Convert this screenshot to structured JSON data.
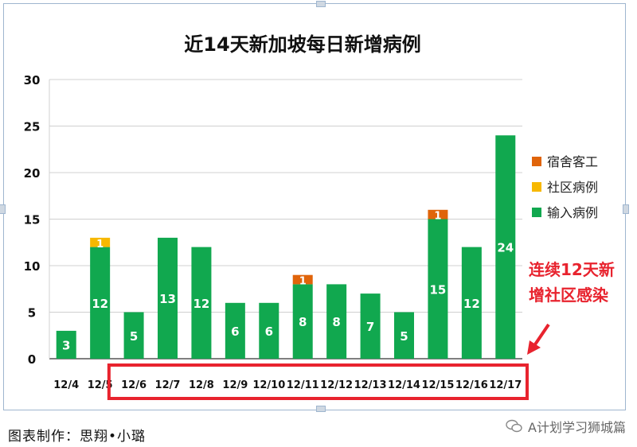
{
  "chart_data": {
    "type": "bar",
    "title": "近14天新加坡每日新增病例",
    "categories": [
      "12/4",
      "12/5",
      "12/6",
      "12/7",
      "12/8",
      "12/9",
      "12/10",
      "12/11",
      "12/12",
      "12/13",
      "12/14",
      "12/15",
      "12/16",
      "12/17"
    ],
    "series": [
      {
        "name": "输入病例",
        "color": "#11a84f",
        "values": [
          3,
          12,
          5,
          13,
          12,
          6,
          6,
          8,
          8,
          7,
          5,
          15,
          12,
          24
        ]
      },
      {
        "name": "社区病例",
        "color": "#f7b800",
        "values": [
          0,
          1,
          0,
          0,
          0,
          0,
          0,
          0,
          0,
          0,
          0,
          0,
          0,
          0
        ]
      },
      {
        "name": "宿舍客工",
        "color": "#e0640a",
        "values": [
          0,
          0,
          0,
          0,
          0,
          0,
          0,
          1,
          0,
          0,
          0,
          1,
          0,
          0
        ]
      }
    ],
    "legend_order": [
      "宿舍客工",
      "社区病例",
      "输入病例"
    ],
    "ylim": [
      0,
      30
    ],
    "yticks": [
      0,
      5,
      10,
      15,
      20,
      25,
      30
    ],
    "legend_position": "right",
    "annotation": {
      "lines": [
        "连续12天新",
        "增社区感染"
      ],
      "color": "#e8232e",
      "highlight_from": "12/6",
      "highlight_to": "12/17"
    }
  },
  "footer": {
    "credit": "图表制作：思翔•小璐",
    "watermark": "A计划学习狮城篇"
  }
}
